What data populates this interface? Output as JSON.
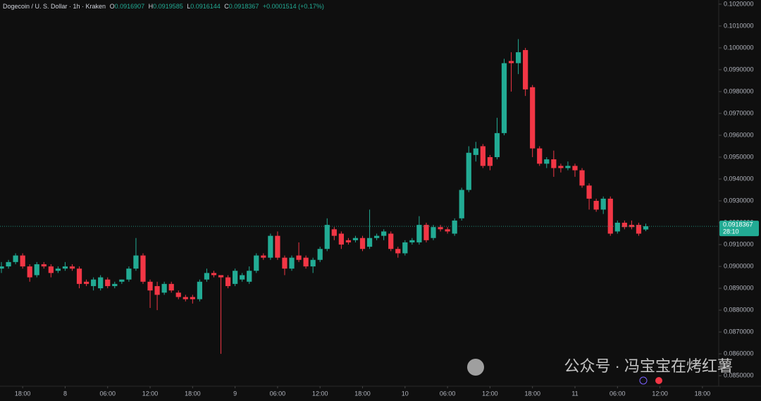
{
  "chart_data": {
    "type": "candlestick",
    "title": "Dogecoin / U. S. Dollar · 1h · Kraken",
    "legend": {
      "labels": [
        "O",
        "H",
        "L",
        "C"
      ]
    },
    "change_label": "+0.0001514 (+0.17%)",
    "countdown": "28:10",
    "watermark": "公众号 · 冯宝宝在烤红薯",
    "up_color": "#22ab94",
    "down_color": "#f23645",
    "grid": false,
    "open": [
      0.0899,
      0.09,
      0.0902,
      0.0905,
      0.09,
      0.0896,
      0.0901,
      0.09,
      0.0898,
      0.0899,
      0.09,
      0.0899,
      0.0893,
      0.0891,
      0.089,
      0.0894,
      0.0891,
      0.0893,
      0.0894,
      0.0899,
      0.0905,
      0.0893,
      0.0891,
      0.0888,
      0.0892,
      0.0888,
      0.0886,
      0.0886,
      0.0885,
      0.0894,
      0.0897,
      0.0896,
      0.0895,
      0.0892,
      0.0894,
      0.0893,
      0.0898,
      0.0905,
      0.0904,
      0.0914,
      0.0904,
      0.0899,
      0.0905,
      0.0904,
      0.09,
      0.0903,
      0.0908,
      0.0917,
      0.0915,
      0.0912,
      0.0912,
      0.0913,
      0.0909,
      0.0913,
      0.0914,
      0.0915,
      0.0908,
      0.0906,
      0.0911,
      0.0911,
      0.0919,
      0.0913,
      0.0918,
      0.0917,
      0.0915,
      0.0922,
      0.0935,
      0.0951,
      0.0955,
      0.095,
      0.095,
      0.0961,
      0.0994,
      0.0993,
      0.0999,
      0.0982,
      0.0954,
      0.0947,
      0.0949,
      0.0946,
      0.0945,
      0.0946,
      0.0944,
      0.0937,
      0.093,
      0.0926,
      0.0931,
      0.0916,
      0.092,
      0.0919,
      0.0919,
      0.0916907
    ],
    "high": [
      0.0902,
      0.0903,
      0.0906,
      0.0906,
      0.0901,
      0.0902,
      0.0902,
      0.0901,
      0.09,
      0.0902,
      0.0901,
      0.09,
      0.0894,
      0.0895,
      0.0896,
      0.0895,
      0.0893,
      0.0894,
      0.09,
      0.0913,
      0.0906,
      0.0894,
      0.0893,
      0.0893,
      0.0893,
      0.0889,
      0.0887,
      0.0887,
      0.0894,
      0.0899,
      0.0898,
      0.0896,
      0.0896,
      0.0899,
      0.0897,
      0.09,
      0.0906,
      0.0906,
      0.0915,
      0.0916,
      0.0905,
      0.0905,
      0.0911,
      0.0905,
      0.0904,
      0.0909,
      0.0922,
      0.0918,
      0.0916,
      0.0913,
      0.0914,
      0.0914,
      0.0926,
      0.0915,
      0.0917,
      0.0916,
      0.0909,
      0.0912,
      0.0913,
      0.0923,
      0.092,
      0.0919,
      0.0919,
      0.0918,
      0.0922,
      0.0936,
      0.0955,
      0.0957,
      0.0956,
      0.0951,
      0.0968,
      0.0995,
      0.0998,
      0.1004,
      0.1,
      0.0983,
      0.0955,
      0.095,
      0.0953,
      0.0947,
      0.0948,
      0.0947,
      0.0945,
      0.0938,
      0.0931,
      0.0932,
      0.0932,
      0.0921,
      0.0921,
      0.0921,
      0.092,
      0.0919585
    ],
    "low": [
      0.0897,
      0.0899,
      0.0901,
      0.0899,
      0.0893,
      0.0895,
      0.0899,
      0.0895,
      0.0897,
      0.0898,
      0.0898,
      0.089,
      0.0891,
      0.0889,
      0.0889,
      0.089,
      0.089,
      0.0892,
      0.0893,
      0.0898,
      0.0892,
      0.0881,
      0.088,
      0.0887,
      0.0888,
      0.0885,
      0.0884,
      0.0883,
      0.0884,
      0.0893,
      0.0895,
      0.086,
      0.089,
      0.0891,
      0.0893,
      0.0892,
      0.0897,
      0.0903,
      0.0903,
      0.0903,
      0.0896,
      0.0898,
      0.0902,
      0.0899,
      0.0897,
      0.0902,
      0.0907,
      0.0912,
      0.0908,
      0.091,
      0.0911,
      0.0907,
      0.0908,
      0.0912,
      0.0912,
      0.0907,
      0.0904,
      0.0905,
      0.091,
      0.091,
      0.0911,
      0.0912,
      0.0916,
      0.0915,
      0.0914,
      0.0921,
      0.0934,
      0.0948,
      0.0945,
      0.0944,
      0.0949,
      0.096,
      0.098,
      0.0988,
      0.0978,
      0.095,
      0.0946,
      0.0945,
      0.0941,
      0.0943,
      0.0944,
      0.0941,
      0.0936,
      0.0926,
      0.0925,
      0.0924,
      0.0914,
      0.0915,
      0.0917,
      0.0917,
      0.0914,
      0.0916144
    ],
    "close": [
      0.09,
      0.0902,
      0.0905,
      0.09,
      0.0895,
      0.0901,
      0.09,
      0.0897,
      0.0899,
      0.09,
      0.0899,
      0.0892,
      0.0892,
      0.0894,
      0.0895,
      0.0891,
      0.0892,
      0.0894,
      0.0899,
      0.0905,
      0.0893,
      0.0889,
      0.0887,
      0.0892,
      0.0889,
      0.0886,
      0.0885,
      0.0885,
      0.0893,
      0.0897,
      0.0896,
      0.0895,
      0.0891,
      0.0898,
      0.0896,
      0.0898,
      0.0905,
      0.0904,
      0.0914,
      0.0904,
      0.0899,
      0.0904,
      0.0903,
      0.09,
      0.0903,
      0.0908,
      0.0919,
      0.0914,
      0.091,
      0.0911,
      0.0913,
      0.0908,
      0.0913,
      0.0914,
      0.0916,
      0.0908,
      0.0906,
      0.0911,
      0.0912,
      0.0919,
      0.0912,
      0.0918,
      0.0917,
      0.0916,
      0.0921,
      0.0935,
      0.0952,
      0.0954,
      0.0946,
      0.0946,
      0.0961,
      0.0993,
      0.0993,
      0.0998,
      0.0981,
      0.0954,
      0.0947,
      0.0949,
      0.0945,
      0.0945,
      0.0946,
      0.0944,
      0.0937,
      0.0931,
      0.0926,
      0.0931,
      0.0915,
      0.092,
      0.0918,
      0.0918,
      0.0915,
      0.0918367
    ],
    "xlim": [
      -0.2,
      101.3
    ],
    "xticks": [
      {
        "value": 3,
        "label": "18:00"
      },
      {
        "value": 9,
        "label": "8"
      },
      {
        "value": 15,
        "label": "06:00"
      },
      {
        "value": 21,
        "label": "12:00"
      },
      {
        "value": 27,
        "label": "18:00"
      },
      {
        "value": 33,
        "label": "9"
      },
      {
        "value": 39,
        "label": "06:00"
      },
      {
        "value": 45,
        "label": "12:00"
      },
      {
        "value": 51,
        "label": "18:00"
      },
      {
        "value": 57,
        "label": "10"
      },
      {
        "value": 63,
        "label": "06:00"
      },
      {
        "value": 69,
        "label": "12:00"
      },
      {
        "value": 75,
        "label": "18:00"
      },
      {
        "value": 81,
        "label": "11"
      },
      {
        "value": 87,
        "label": "06:00"
      },
      {
        "value": 93,
        "label": "12:00"
      },
      {
        "value": 99,
        "label": "18:00"
      }
    ],
    "ylim": [
      0.08452,
      0.10219
    ],
    "yticks": [
      {
        "value": 0.085,
        "label": "0.0850000"
      },
      {
        "value": 0.086,
        "label": "0.0860000"
      },
      {
        "value": 0.087,
        "label": "0.0870000"
      },
      {
        "value": 0.088,
        "label": "0.0880000"
      },
      {
        "value": 0.089,
        "label": "0.0890000"
      },
      {
        "value": 0.09,
        "label": "0.0900000"
      },
      {
        "value": 0.091,
        "label": "0.0910000"
      },
      {
        "value": 0.092,
        "label": "0.0920000"
      },
      {
        "value": 0.093,
        "label": "0.0930000"
      },
      {
        "value": 0.094,
        "label": "0.0940000"
      },
      {
        "value": 0.095,
        "label": "0.0950000"
      },
      {
        "value": 0.096,
        "label": "0.0960000"
      },
      {
        "value": 0.097,
        "label": "0.0970000"
      },
      {
        "value": 0.098,
        "label": "0.0980000"
      },
      {
        "value": 0.099,
        "label": "0.0990000"
      },
      {
        "value": 0.1,
        "label": "0.1000000"
      },
      {
        "value": 0.101,
        "label": "0.1010000"
      },
      {
        "value": 0.102,
        "label": "0.1020000"
      }
    ]
  }
}
